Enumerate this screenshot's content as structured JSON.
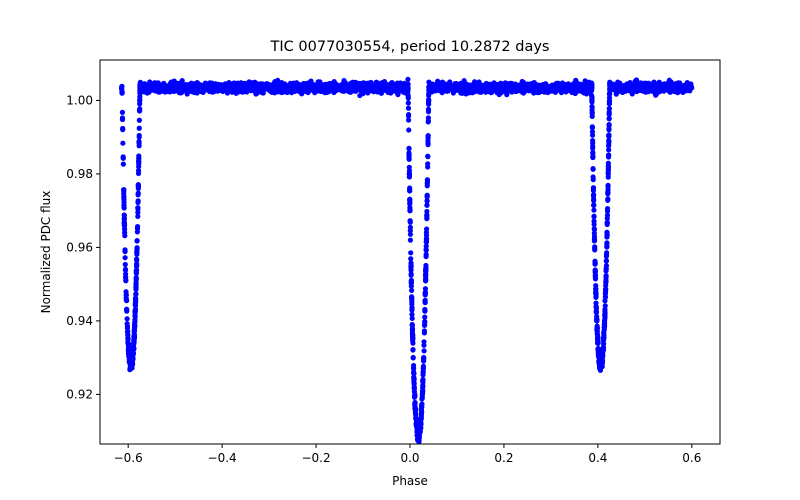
{
  "chart_data": {
    "type": "scatter",
    "title": "TIC 0077030554, period 10.2872 days",
    "xlabel": "Phase",
    "ylabel": "Normalized PDC flux",
    "xlim": [
      -0.66,
      0.66
    ],
    "ylim": [
      0.9065,
      1.011
    ],
    "xticks": [
      -0.6,
      -0.4,
      -0.2,
      0.0,
      0.2,
      0.4,
      0.6
    ],
    "xtick_labels": [
      "−0.6",
      "−0.4",
      "−0.2",
      "0.0",
      "0.2",
      "0.4",
      "0.6"
    ],
    "yticks": [
      0.92,
      0.94,
      0.96,
      0.98,
      1.0
    ],
    "ytick_labels": [
      "0.92",
      "0.94",
      "0.96",
      "0.98",
      "1.00"
    ],
    "grid": false,
    "marker_color": "#0000ff",
    "baseline_flux": 1.0035,
    "phase_range": [
      -0.6,
      0.6
    ],
    "eclipses": [
      {
        "name": "primary",
        "center_phase": 0.018,
        "half_width": 0.022,
        "min_flux": 0.909
      },
      {
        "name": "secondary-1",
        "center_phase": -0.594,
        "half_width": 0.019,
        "min_flux": 0.928
      },
      {
        "name": "secondary-2",
        "center_phase": 0.406,
        "half_width": 0.019,
        "min_flux": 0.928
      }
    ]
  }
}
